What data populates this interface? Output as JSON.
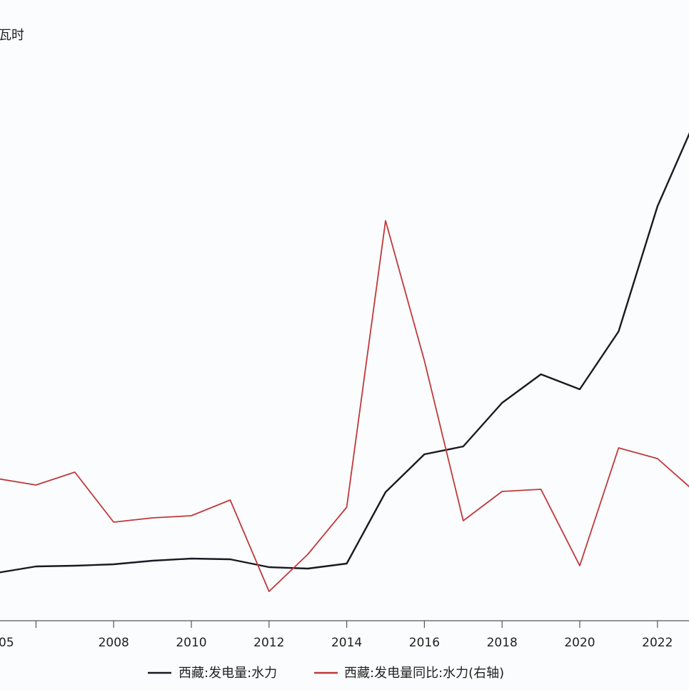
{
  "chart_data": {
    "type": "line",
    "title": "",
    "y_unit_label": "瓦时",
    "x_tick_labels": [
      "05",
      "2008",
      "2010",
      "2012",
      "2014",
      "2016",
      "2018",
      "2020",
      "2022"
    ],
    "x": [
      2005,
      2006,
      2007,
      2008,
      2009,
      2010,
      2011,
      2012,
      2013,
      2014,
      2015,
      2016,
      2017,
      2018,
      2019,
      2020,
      2021,
      2022,
      2023
    ],
    "series": [
      {
        "name": "西藏:发电量:水力",
        "color": "#1a1a24",
        "axis": "left",
        "values": [
          802,
          793,
          792,
          790,
          785,
          782,
          783,
          794,
          796,
          789,
          689,
          636,
          625,
          564,
          524,
          545,
          464,
          289,
          165
        ]
      },
      {
        "name": "西藏:发电量同比:水力(右轴)",
        "color": "#c0393b",
        "axis": "right",
        "values": [
          670,
          679,
          661,
          731,
          725,
          722,
          700,
          828,
          776,
          710,
          309,
          505,
          729,
          688,
          685,
          792,
          627,
          642,
          690
        ]
      }
    ],
    "grid": false,
    "legend_position": "bottom"
  }
}
